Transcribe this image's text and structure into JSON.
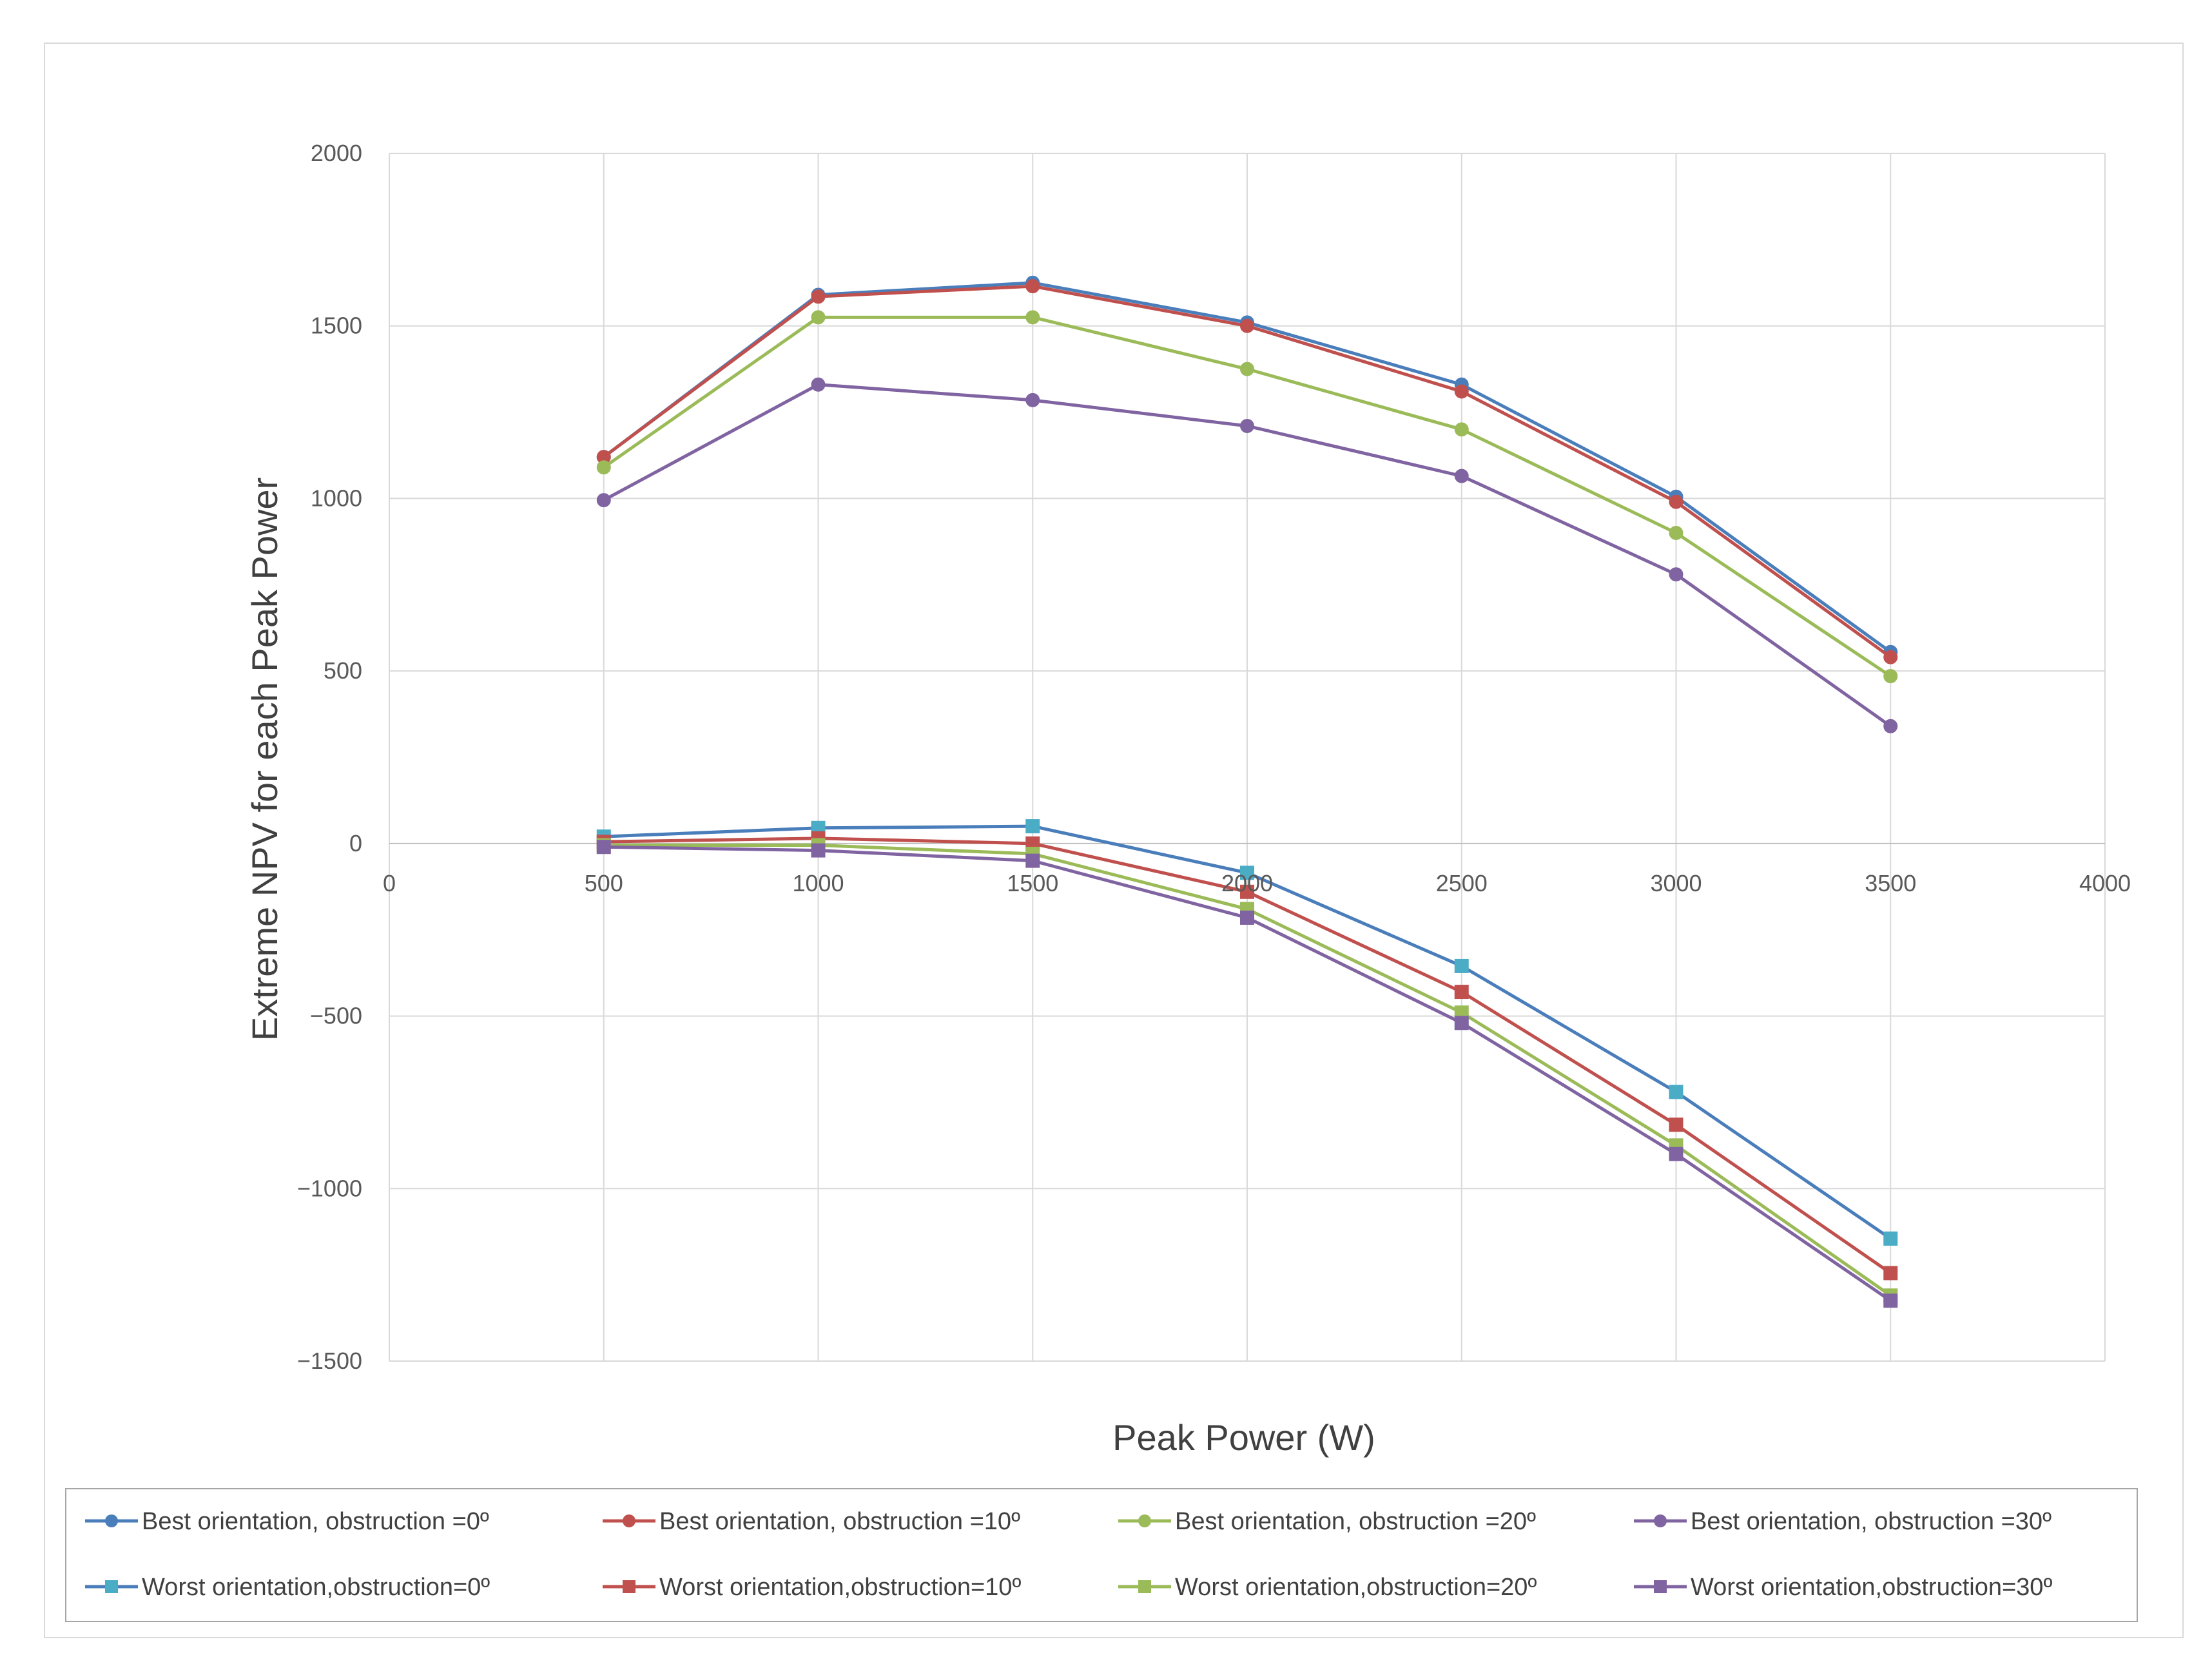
{
  "chart_data": {
    "type": "line",
    "title": "",
    "xlabel": "Peak Power (W)",
    "ylabel": "Extreme NPV for each Peak Power",
    "xlim": [
      0,
      4000
    ],
    "ylim": [
      -1500,
      2000
    ],
    "x_ticks": [
      0,
      500,
      1000,
      1500,
      2000,
      2500,
      3000,
      3500,
      4000
    ],
    "y_ticks": [
      2000,
      1500,
      1000,
      500,
      0,
      -500,
      -1000,
      -1500
    ],
    "y_tick_labels": [
      "2000",
      "1500",
      "1000",
      "500",
      "0",
      "−500",
      "−1000",
      "−1500"
    ],
    "grid": true,
    "legend_position": "bottom",
    "x": [
      500,
      1000,
      1500,
      2000,
      2500,
      3000,
      3500
    ],
    "series": [
      {
        "name": "Best orientation, obstruction =0º",
        "color": "#4a7ebb",
        "marker": "circle",
        "values": [
          1120,
          1590,
          1625,
          1510,
          1330,
          1005,
          555
        ]
      },
      {
        "name": "Best orientation, obstruction =10º",
        "color": "#c0504d",
        "marker": "circle",
        "values": [
          1120,
          1585,
          1615,
          1500,
          1310,
          990,
          540
        ]
      },
      {
        "name": "Best orientation, obstruction =20º",
        "color": "#9bbb59",
        "marker": "circle",
        "values": [
          1090,
          1525,
          1525,
          1375,
          1200,
          900,
          485
        ]
      },
      {
        "name": "Best orientation, obstruction =30º",
        "color": "#8064a2",
        "marker": "circle",
        "values": [
          995,
          1330,
          1285,
          1210,
          1065,
          780,
          340
        ]
      },
      {
        "name": "Worst orientation,obstruction=0º",
        "color": "#4bacc6",
        "line_color": "#4a7ebb",
        "marker": "square",
        "values": [
          20,
          45,
          50,
          -85,
          -355,
          -720,
          -1145
        ]
      },
      {
        "name": "Worst orientation,obstruction=10º",
        "color": "#c0504d",
        "marker": "square",
        "values": [
          5,
          15,
          0,
          -140,
          -430,
          -815,
          -1245
        ]
      },
      {
        "name": "Worst orientation,obstruction=20º",
        "color": "#9bbb59",
        "marker": "square",
        "values": [
          -5,
          -5,
          -30,
          -190,
          -490,
          -875,
          -1310
        ]
      },
      {
        "name": "Worst orientation,obstruction=30º",
        "color": "#8064a2",
        "marker": "square",
        "values": [
          -10,
          -20,
          -50,
          -215,
          -520,
          -900,
          -1325
        ]
      }
    ]
  }
}
